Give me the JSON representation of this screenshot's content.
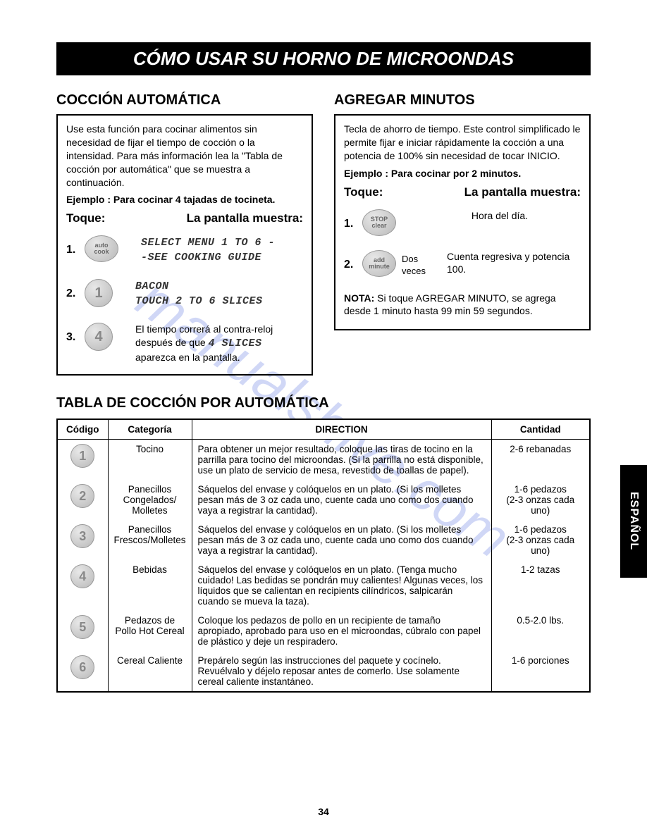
{
  "title": "CÓMO USAR SU HORNO DE MICROONDAS",
  "watermark": "manualshive.com",
  "page_number": "34",
  "side_tab": "ESPAÑOL",
  "left": {
    "heading": "COCCIÓN AUTOMÁTICA",
    "intro": "Use esta función para cocinar alimentos sin necesidad de fijar el tiempo de cocción o la intensidad. Para más información lea la \"Tabla de cocción por automática\" que se muestra a continuación.",
    "example": "Ejemplo : Para cocinar 4 tajadas de tocineta.",
    "toque": "Toque:",
    "pantalla": "La pantalla muestra:",
    "steps": [
      {
        "n": "1.",
        "btn1": "auto",
        "btn2": "cook",
        "disp1": "SELECT MENU 1 TO 6 -",
        "disp2": "-SEE COOKING GUIDE"
      },
      {
        "n": "2.",
        "num": "1",
        "disp1": "BACON",
        "disp2": "TOUCH 2 TO 6 SLICES"
      },
      {
        "n": "3.",
        "num": "4",
        "text": "El tiempo correrá al contra-reloj después de que 4 SLICES aparezca en la pantalla.",
        "lcd_inline": "4 SLICES"
      }
    ]
  },
  "right": {
    "heading": "AGREGAR MINUTOS",
    "intro": "Tecla de ahorro de tiempo. Este control simplificado le permite fijar e iniciar rápidamente la cocción a una potencia de 100% sin necesidad de tocar INICIO.",
    "example": "Ejemplo : Para cocinar por 2 minutos.",
    "toque": "Toque:",
    "pantalla": "La pantalla muestra:",
    "steps": [
      {
        "n": "1.",
        "btn1": "STOP",
        "btn2": "clear",
        "text": "Hora del día."
      },
      {
        "n": "2.",
        "btn1": "add",
        "btn2": "minute",
        "extra": "Dos veces",
        "text": "Cuenta regresiva y potencia 100."
      }
    ],
    "note_label": "NOTA:",
    "note": " Si toque AGREGAR MINUTO, se agrega desde 1 minuto hasta 99 min 59 segundos."
  },
  "table": {
    "heading": "TABLA DE COCCIÓN POR AUTOMÁTICA",
    "headers": [
      "Código",
      "Categoría",
      "DIRECTION",
      "Cantidad"
    ],
    "rows": [
      {
        "code": "1",
        "cat": "Tocino",
        "dir": "Para obtener un mejor resultado, coloque las tiras de tocino en la parrilla para tocino del microondas. (Si la parrilla no está disponible, use un plato de servicio de mesa, revestido de toallas de papel).",
        "qty": "2-6 rebanadas"
      },
      {
        "code": "2",
        "cat": "Panecillos Congelados/ Molletes",
        "dir": "Sáquelos del envase y colóquelos en un plato. (Si los molletes pesan más de 3 oz cada uno, cuente cada uno como dos cuando vaya a registrar la cantidad).",
        "qty": "1-6 pedazos\n(2-3 onzas cada uno)"
      },
      {
        "code": "3",
        "cat": "Panecillos Frescos/Molletes",
        "dir": "Sáquelos del envase y colóquelos en un plato. (Si los molletes pesan más de 3 oz cada uno, cuente cada uno como dos cuando vaya a registrar la cantidad).",
        "qty": "1-6 pedazos\n(2-3 onzas cada uno)"
      },
      {
        "code": "4",
        "cat": "Bebidas",
        "dir": "Sáquelos del envase y colóquelos en un plato. (Tenga mucho cuidado! Las bedidas se pondrán muy calientes! Algunas veces, los líquidos que se calientan en recipients cilíndricos, salpicarán cuando se mueva la taza).",
        "qty": "1-2 tazas"
      },
      {
        "code": "5",
        "cat": "Pedazos de Pollo Hot Cereal",
        "dir": "Coloque los pedazos de pollo en un recipiente de tamaño apropiado, aprobado para uso en el microondas, cúbralo con papel de plástico y deje un respiradero.",
        "qty": "0.5-2.0 lbs."
      },
      {
        "code": "6",
        "cat": "Cereal Caliente",
        "dir": "Prepárelo según las instrucciones del paquete y cocínelo. Revuélvalo y déjelo reposar antes de comerlo. Use solamente cereal caliente instantáneo.",
        "qty": "1-6 porciones"
      }
    ]
  }
}
